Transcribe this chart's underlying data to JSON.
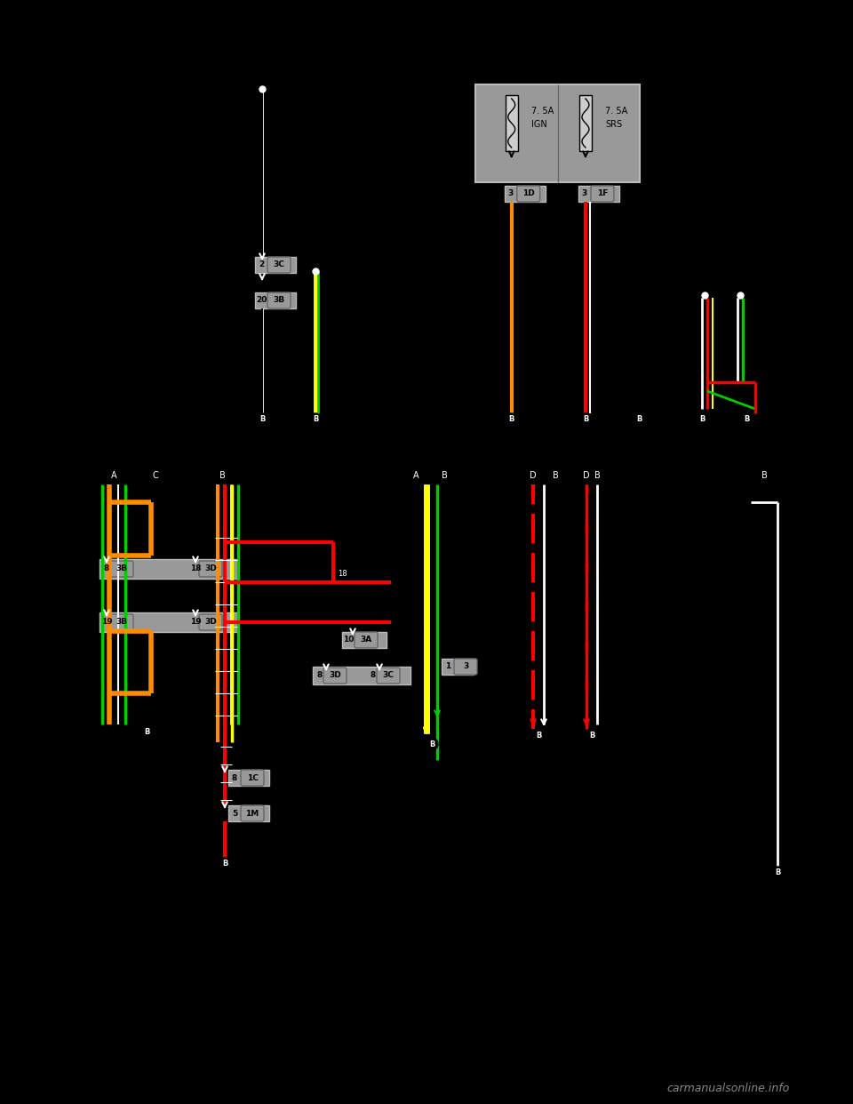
{
  "bg_color": "#000000",
  "wire_colors": {
    "orange": "#FF8C00",
    "red": "#FF0000",
    "green": "#00CC00",
    "yellow": "#FFFF00",
    "white": "#FFFFFF",
    "black": "#000000",
    "gray": "#999999",
    "light_gray": "#BBBBBB",
    "dark_gray": "#666666"
  },
  "watermark": "carmanualsonline.info",
  "fuse1_label1": "7. 5A",
  "fuse1_label2": "IGN",
  "fuse2_label1": "7. 5A",
  "fuse2_label2": "SRS"
}
